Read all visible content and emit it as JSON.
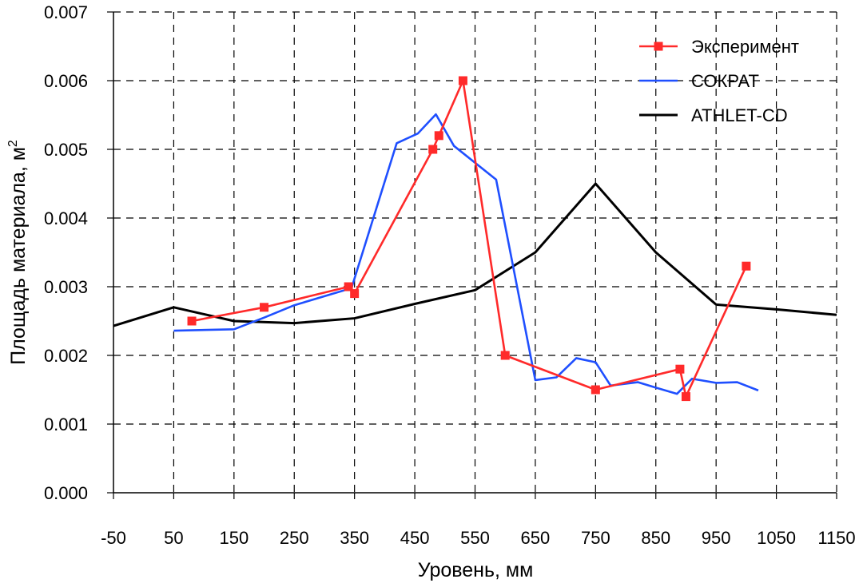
{
  "chart_data": {
    "type": "line",
    "title": "",
    "xlabel": "Уровень, мм",
    "ylabel": "Площадь материала, м",
    "ylabel_superscript": "2",
    "xlim": [
      -50,
      1150
    ],
    "ylim": [
      0,
      0.007
    ],
    "x_ticks": [
      "-50",
      "50",
      "150",
      "250",
      "350",
      "450",
      "550",
      "650",
      "750",
      "850",
      "950",
      "1050",
      "1150"
    ],
    "y_ticks": [
      "0.000",
      "0.001",
      "0.002",
      "0.003",
      "0.004",
      "0.005",
      "0.006",
      "0.007"
    ],
    "grid": true,
    "legend_position": "top-right",
    "series": [
      {
        "name": "Эксперимент",
        "color": "#ff2a2a",
        "marker": "square",
        "x": [
          80,
          200,
          340,
          350,
          480,
          490,
          530,
          600,
          750,
          890,
          900,
          1000
        ],
        "y": [
          0.0025,
          0.0027,
          0.003,
          0.0029,
          0.005,
          0.0052,
          0.006,
          0.002,
          0.0015,
          0.0018,
          0.0014,
          0.0033
        ]
      },
      {
        "name": "СОКРАТ",
        "color": "#1f4fff",
        "marker": "none",
        "x": [
          50,
          150,
          200,
          250,
          345,
          420,
          455,
          485,
          515,
          585,
          650,
          685,
          718,
          750,
          775,
          820,
          850,
          885,
          910,
          950,
          985,
          1020
        ],
        "y": [
          0.00236,
          0.00238,
          0.00255,
          0.00273,
          0.00298,
          0.00509,
          0.00523,
          0.00551,
          0.00505,
          0.00456,
          0.00164,
          0.00168,
          0.00196,
          0.0019,
          0.00156,
          0.00161,
          0.00153,
          0.00144,
          0.00166,
          0.0016,
          0.00161,
          0.00149
        ]
      },
      {
        "name": "ATHLET-CD",
        "color": "#000000",
        "marker": "none",
        "x": [
          -50,
          50,
          150,
          250,
          350,
          450,
          550,
          650,
          750,
          850,
          950,
          1050,
          1150
        ],
        "y": [
          0.00243,
          0.0027,
          0.0025,
          0.00247,
          0.00254,
          0.00275,
          0.00295,
          0.0035,
          0.0045,
          0.0035,
          0.00274,
          0.00267,
          0.00259
        ]
      }
    ]
  }
}
